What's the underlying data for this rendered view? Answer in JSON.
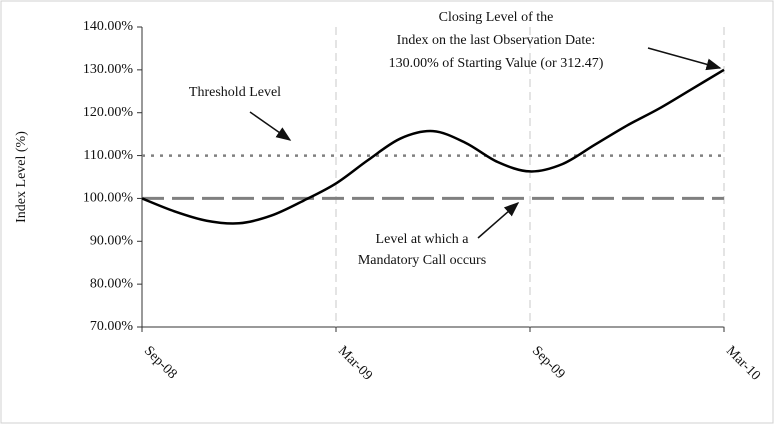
{
  "chart_data": {
    "type": "line",
    "y_label": "Index Level (%)",
    "categories": [
      "Sep-08",
      null,
      null,
      null,
      null,
      null,
      "Mar-09",
      null,
      null,
      null,
      null,
      null,
      "Sep-09",
      null,
      null,
      null,
      null,
      null,
      "Mar-10"
    ],
    "series": [
      {
        "color": "#000000",
        "values": [
          100,
          97,
          94.8,
          94.2,
          96,
          99.5,
          103.5,
          109,
          114,
          115.7,
          113,
          108.5,
          106.3,
          108,
          112.5,
          117,
          121,
          125.5,
          130
        ]
      }
    ],
    "ylim": [
      70,
      140
    ],
    "yticks": [
      {
        "value": 70,
        "label": "70.00%"
      },
      {
        "value": 80,
        "label": "80.00%"
      },
      {
        "value": 90,
        "label": "90.00%"
      },
      {
        "value": 100,
        "label": "100.00%"
      },
      {
        "value": 110,
        "label": "110.00%"
      },
      {
        "value": 120,
        "label": "120.00%"
      },
      {
        "value": 130,
        "label": "130.00%"
      },
      {
        "value": 140,
        "label": "140.00%"
      }
    ],
    "threshold": {
      "value": 110,
      "label": "Threshold Level",
      "color": "#808080"
    },
    "call_level": {
      "value": 100,
      "label": [
        "Level at which a",
        "Mandatory Call occurs"
      ],
      "color": "#808080"
    },
    "closing_annotation": [
      "Closing Level of the",
      "Index on the last Observation Date:",
      "130.00% of Starting Value (or 312.47)"
    ]
  }
}
